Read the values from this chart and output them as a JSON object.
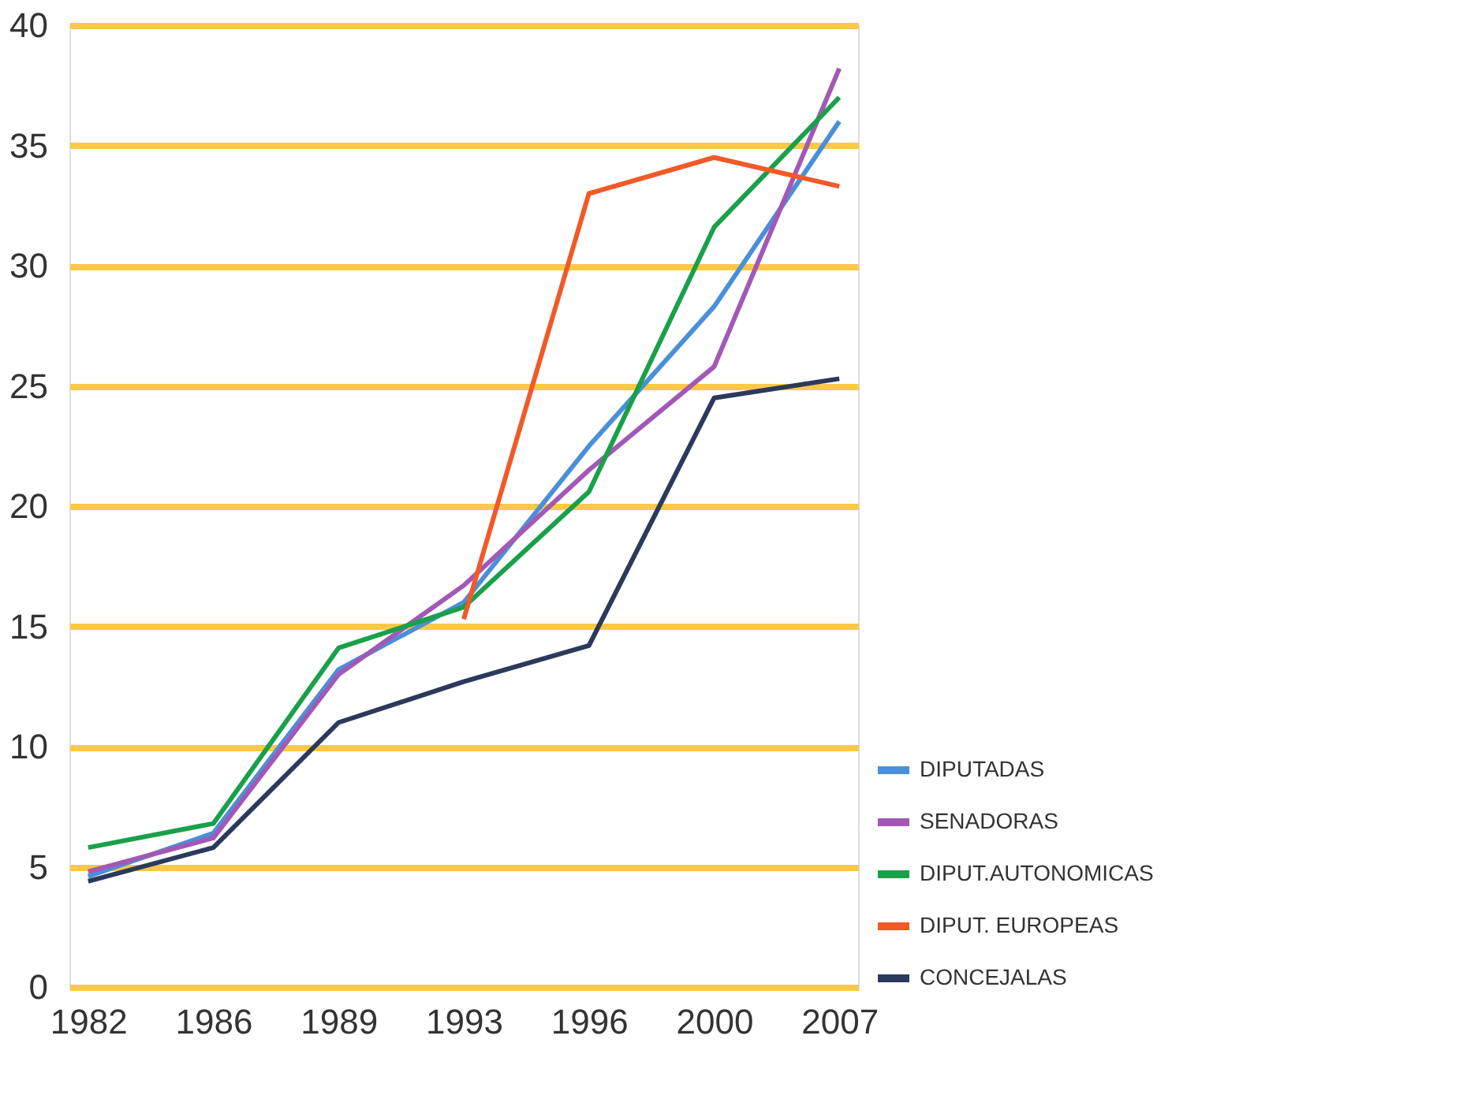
{
  "chart_data": {
    "type": "line",
    "categories": [
      "1982",
      "1986",
      "1989",
      "1993",
      "1996",
      "2000",
      "2007"
    ],
    "ylim": [
      0,
      40
    ],
    "yticks": [
      0,
      5,
      10,
      15,
      20,
      25,
      30,
      35,
      40
    ],
    "grid": "y",
    "legend": "bottom right",
    "line_style": "solid",
    "marker": "none",
    "series": [
      {
        "name": "DIPUTADAS",
        "color": "#4a90d9",
        "values": [
          4.6,
          6.4,
          13.2,
          16,
          22.5,
          28.3,
          36
        ]
      },
      {
        "name": "SENADORAS",
        "color": "#a259b5",
        "values": [
          4.8,
          6.2,
          13,
          16.7,
          21.5,
          25.8,
          38.2
        ]
      },
      {
        "name": "DIPUT.AUTONOMICAS",
        "color": "#1aa04a",
        "values": [
          5.8,
          6.8,
          14.1,
          15.8,
          20.6,
          31.6,
          37
        ]
      },
      {
        "name": "DIPUT. EUROPEAS",
        "color": "#f05a28",
        "values": [
          null,
          null,
          null,
          15.3,
          33,
          34.5,
          33.3
        ]
      },
      {
        "name": "CONCEJALAS",
        "color": "#2b3a5c",
        "values": [
          4.4,
          5.8,
          11,
          12.7,
          14.2,
          24.5,
          25.3
        ]
      }
    ]
  }
}
